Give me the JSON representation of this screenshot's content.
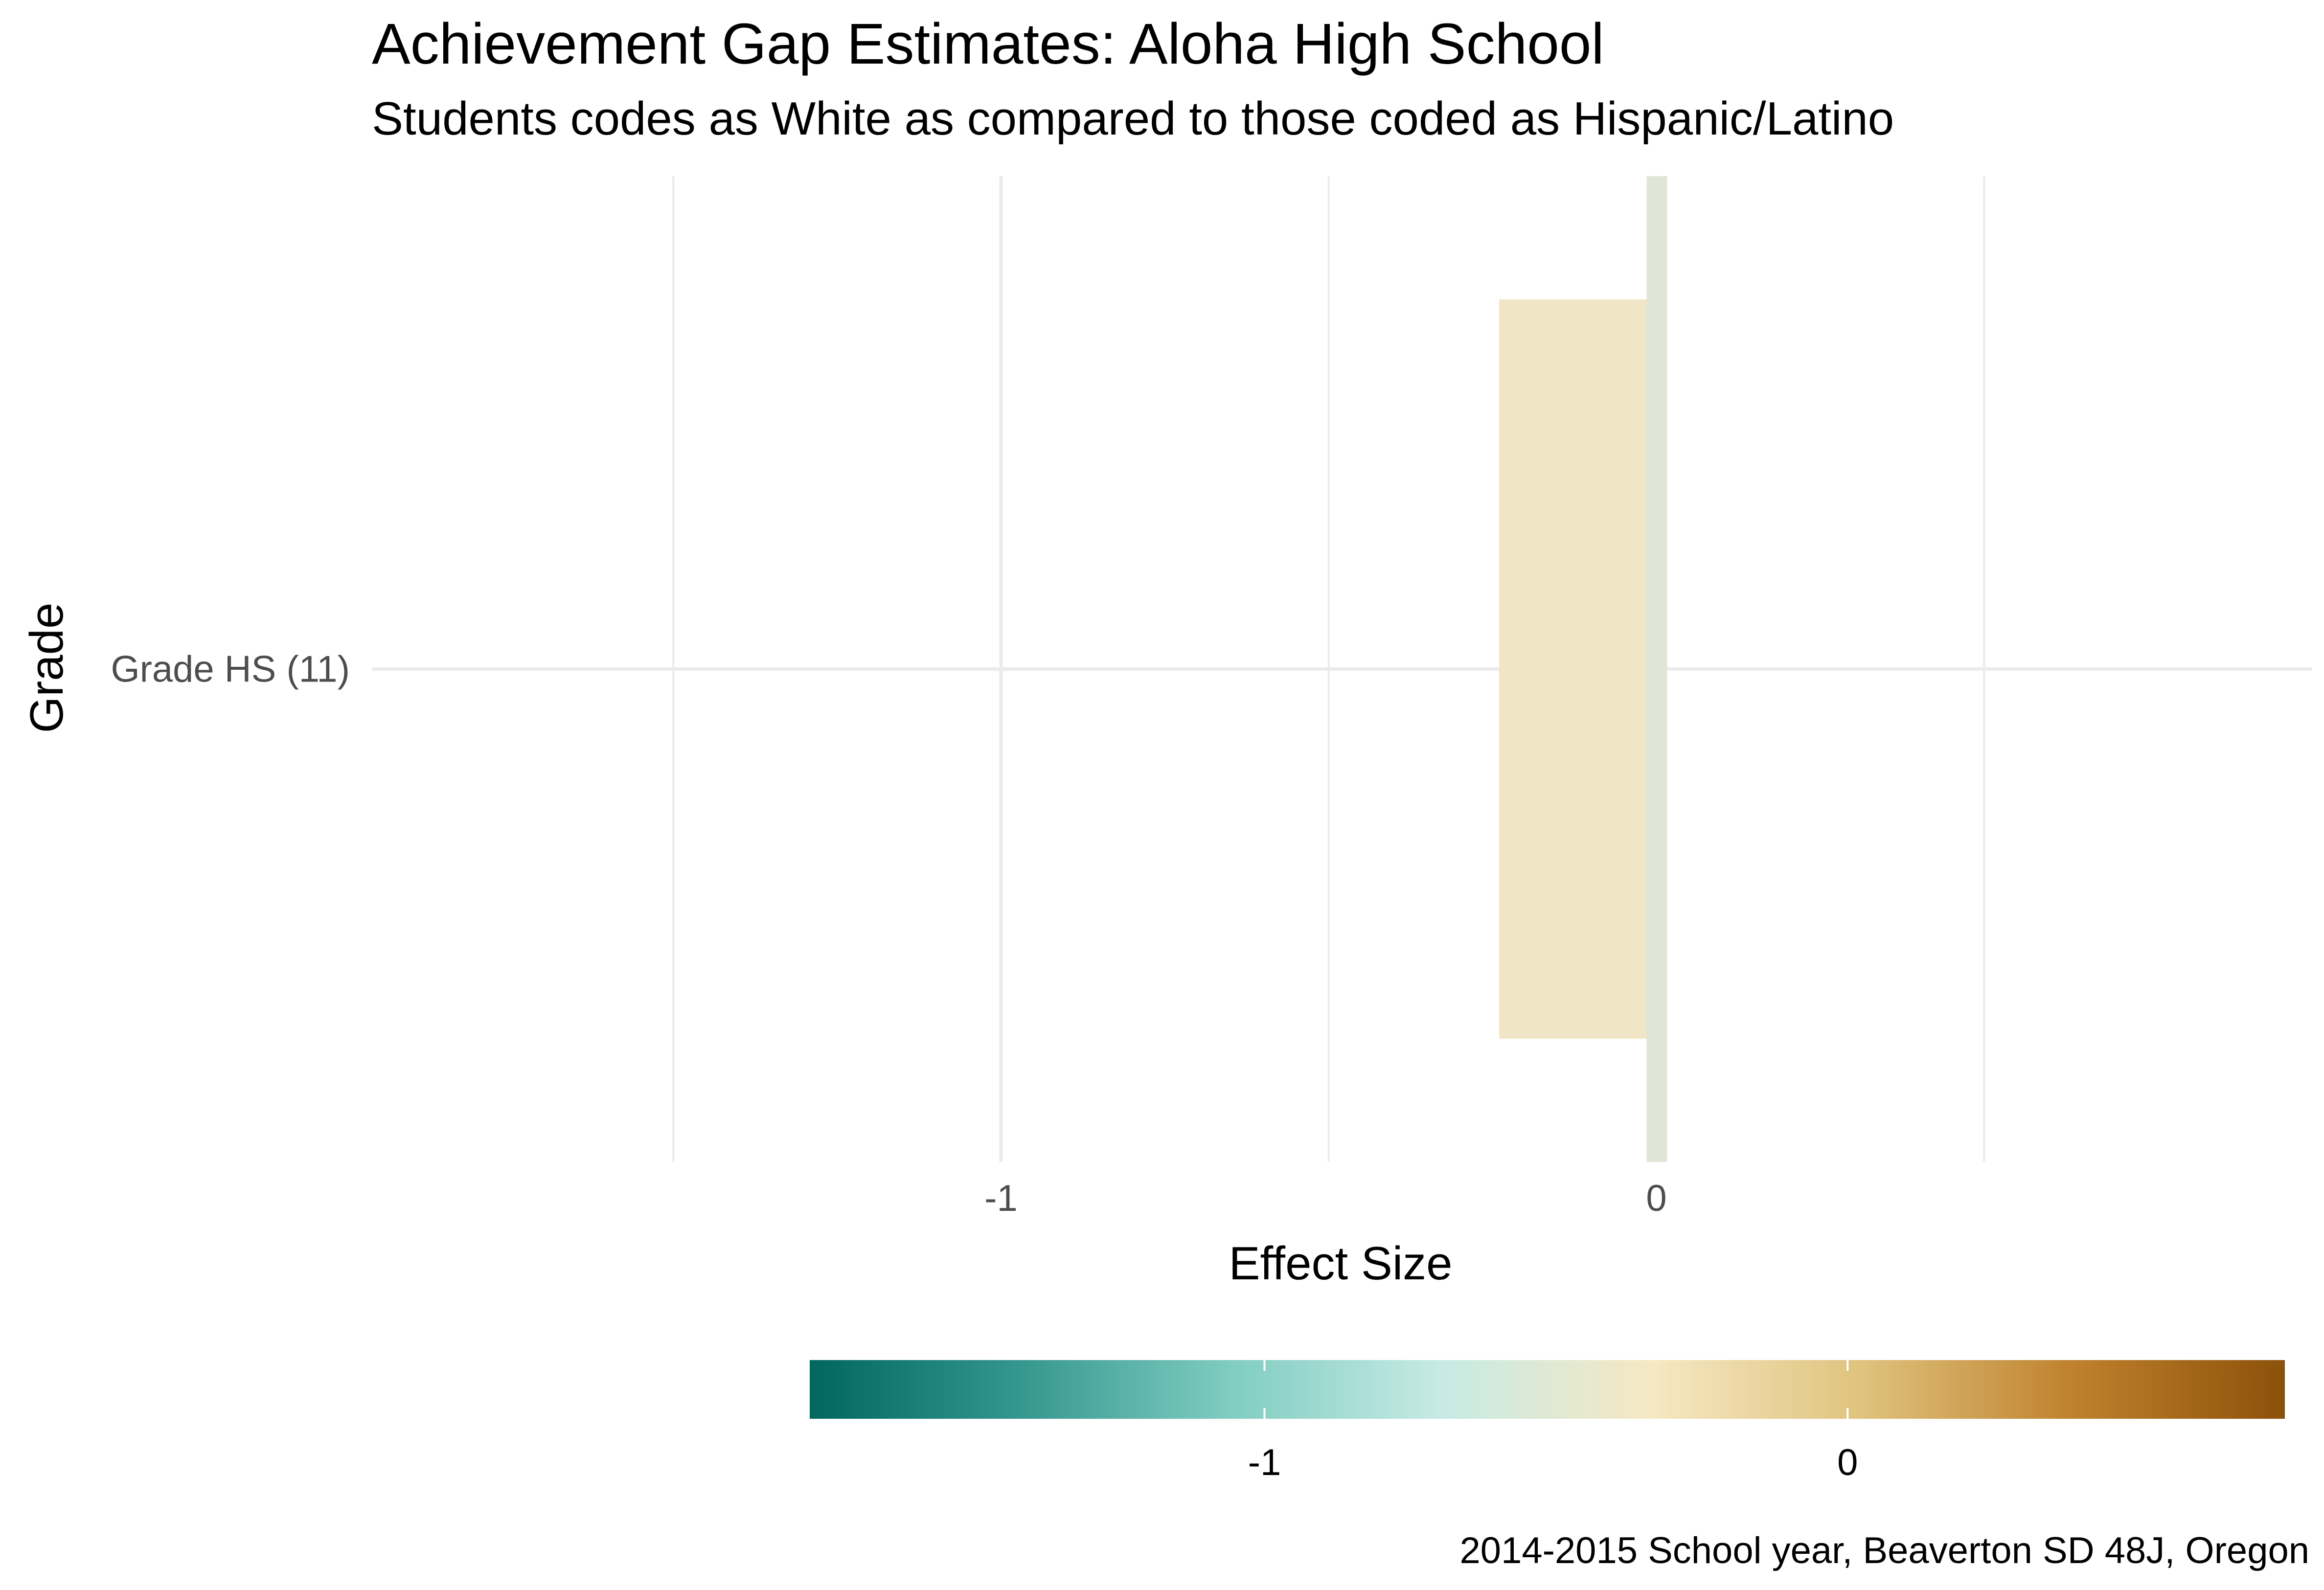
{
  "chart_data": {
    "type": "bar",
    "orientation": "horizontal",
    "title": "Achievement Gap Estimates: Aloha High School",
    "subtitle": "Students codes as White as compared to those coded as Hispanic/Latino",
    "xlabel": "Effect Size",
    "ylabel": "Grade",
    "categories": [
      "Grade HS (11)"
    ],
    "series": [
      {
        "values": [
          -0.24
        ]
      }
    ],
    "xlim": [
      -1.96,
      1.0
    ],
    "x_ticks": [
      {
        "value": -1,
        "label": "-1"
      },
      {
        "value": 0,
        "label": "0"
      }
    ],
    "x_minor_gridlines": [
      -1.5,
      -0.5,
      0.5
    ],
    "reference_line": {
      "value": 0,
      "color": "#dfe6d6"
    },
    "bar_colors": [
      "#f0e6c6"
    ],
    "grid": true,
    "legend": {
      "type": "colorbar",
      "position": "bottom",
      "range": [
        -1.78,
        0.75
      ],
      "ticks": [
        {
          "value": -1,
          "label": "-1"
        },
        {
          "value": 0,
          "label": "0"
        }
      ],
      "colors": [
        "#01665e",
        "#35978f",
        "#80cdc1",
        "#c7eae5",
        "#f6e8c3",
        "#dfc27d",
        "#bf812d",
        "#8c510a"
      ]
    },
    "caption": "2014-2015 School year, Beaverton SD 48J, Oregon"
  }
}
